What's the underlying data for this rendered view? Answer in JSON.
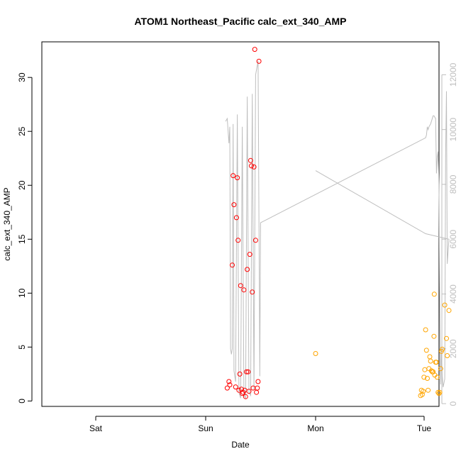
{
  "chart_data": {
    "type": "scatter",
    "title": "ATOM1 Northeast_Pacific calc_ext_340_AMP",
    "xlabel": "Date",
    "ylabel": "calc_ext_340_AMP",
    "x_ticks": [
      "Sat",
      "Sun",
      "Mon",
      "Tue"
    ],
    "xlim": [
      -0.567,
      2.074
    ],
    "ylim": [
      -0.5,
      33.3
    ],
    "y_ticks": [
      0,
      5,
      10,
      15,
      20,
      25,
      30
    ],
    "y2lim": [
      -100,
      13200
    ],
    "y2_ticks": [
      0,
      2000,
      4000,
      6000,
      8000,
      10000,
      12000
    ],
    "grid": false,
    "colors": {
      "red": "#ff0000",
      "orange": "#ffa500",
      "gray": "#bebebe"
    },
    "series": [
      {
        "color": "#ff0000",
        "points": [
          [
            -0.53,
            1.2
          ],
          [
            -0.52,
            1.8
          ],
          [
            -0.515,
            1.5
          ],
          [
            -0.5,
            12.6
          ],
          [
            -0.495,
            20.9
          ],
          [
            -0.49,
            18.2
          ],
          [
            -0.48,
            1.3
          ],
          [
            -0.475,
            17.0
          ],
          [
            -0.47,
            20.7
          ],
          [
            -0.465,
            14.9
          ],
          [
            -0.46,
            1.0
          ],
          [
            -0.455,
            2.5
          ],
          [
            -0.45,
            10.7
          ],
          [
            -0.445,
            1.1
          ],
          [
            -0.44,
            0.7
          ],
          [
            -0.435,
            0.8
          ],
          [
            -0.43,
            10.3
          ],
          [
            -0.425,
            1.0
          ],
          [
            -0.42,
            0.4
          ],
          [
            -0.415,
            2.7
          ],
          [
            -0.41,
            12.2
          ],
          [
            -0.405,
            2.7
          ],
          [
            -0.4,
            0.9
          ],
          [
            -0.395,
            13.6
          ],
          [
            -0.39,
            22.3
          ],
          [
            -0.385,
            21.8
          ],
          [
            -0.38,
            10.1
          ],
          [
            -0.375,
            1.2
          ],
          [
            -0.37,
            21.7
          ],
          [
            -0.365,
            32.6
          ],
          [
            -0.36,
            14.9
          ],
          [
            -0.355,
            0.8
          ],
          [
            -0.35,
            1.2
          ],
          [
            -0.345,
            1.8
          ],
          [
            -0.34,
            31.5
          ]
        ]
      },
      {
        "color": "#ffa500",
        "points": [
          [
            0.0,
            4.4
          ],
          [
            0.63,
            0.5
          ],
          [
            0.635,
            1.0
          ],
          [
            0.64,
            0.6
          ],
          [
            0.645,
            0.9
          ],
          [
            0.65,
            2.2
          ],
          [
            0.655,
            2.9
          ],
          [
            0.66,
            6.6
          ],
          [
            0.665,
            4.7
          ],
          [
            0.67,
            2.1
          ],
          [
            0.675,
            1.0
          ],
          [
            0.68,
            3.0
          ],
          [
            0.685,
            4.1
          ],
          [
            0.69,
            3.7
          ],
          [
            0.695,
            2.8
          ],
          [
            0.7,
            2.7
          ],
          [
            0.705,
            2.7
          ],
          [
            0.71,
            6.0
          ],
          [
            0.712,
            9.9
          ],
          [
            0.715,
            2.4
          ],
          [
            0.72,
            3.6
          ],
          [
            0.725,
            3.6
          ],
          [
            0.73,
            2.2
          ],
          [
            0.735,
            0.8
          ],
          [
            0.74,
            0.7
          ],
          [
            0.745,
            0.8
          ],
          [
            0.75,
            3.0
          ],
          [
            0.755,
            4.6
          ],
          [
            0.76,
            4.8
          ],
          [
            0.775,
            8.9
          ],
          [
            0.785,
            5.8
          ],
          [
            0.79,
            4.2
          ],
          [
            0.8,
            8.4
          ]
        ]
      }
    ],
    "secondary_line": {
      "color": "#bebebe",
      "points": [
        [
          -0.54,
          10300
        ],
        [
          -0.53,
          10400
        ],
        [
          -0.52,
          9500
        ],
        [
          -0.515,
          10100
        ],
        [
          -0.51,
          2000
        ],
        [
          -0.505,
          1800
        ],
        [
          -0.5,
          2000
        ],
        [
          -0.495,
          10200
        ],
        [
          -0.49,
          1200
        ],
        [
          -0.48,
          800
        ],
        [
          -0.47,
          10550
        ],
        [
          -0.46,
          400
        ],
        [
          -0.45,
          200
        ],
        [
          -0.44,
          10100
        ],
        [
          -0.43,
          300
        ],
        [
          -0.42,
          200
        ],
        [
          -0.41,
          11200
        ],
        [
          -0.4,
          400
        ],
        [
          -0.39,
          300
        ],
        [
          -0.38,
          11300
        ],
        [
          -0.37,
          500
        ],
        [
          -0.36,
          12000
        ],
        [
          -0.345,
          12500
        ],
        [
          -0.335,
          1000
        ],
        [
          -0.33,
          6600
        ],
        [
          0.66,
          9700
        ],
        [
          0.665,
          9800
        ],
        [
          0.67,
          10100
        ],
        [
          0.675,
          10000
        ],
        [
          0.68,
          10100
        ],
        [
          0.69,
          10200
        ],
        [
          0.7,
          10400
        ],
        [
          0.705,
          10500
        ],
        [
          0.71,
          10500
        ],
        [
          0.72,
          10400
        ],
        [
          0.725,
          8400
        ],
        [
          0.73,
          9000
        ],
        [
          0.735,
          9200
        ],
        [
          0.74,
          8000
        ],
        [
          0.745,
          3500
        ],
        [
          0.75,
          700
        ],
        [
          0.755,
          2000
        ],
        [
          0.76,
          1000
        ],
        [
          0.765,
          600
        ],
        [
          0.775,
          900
        ],
        [
          0.78,
          9000
        ],
        [
          0.785,
          11400
        ],
        [
          0.79,
          5100
        ],
        [
          0.8,
          6000
        ],
        [
          0.66,
          6200
        ],
        [
          0.0,
          8500
        ]
      ]
    }
  }
}
